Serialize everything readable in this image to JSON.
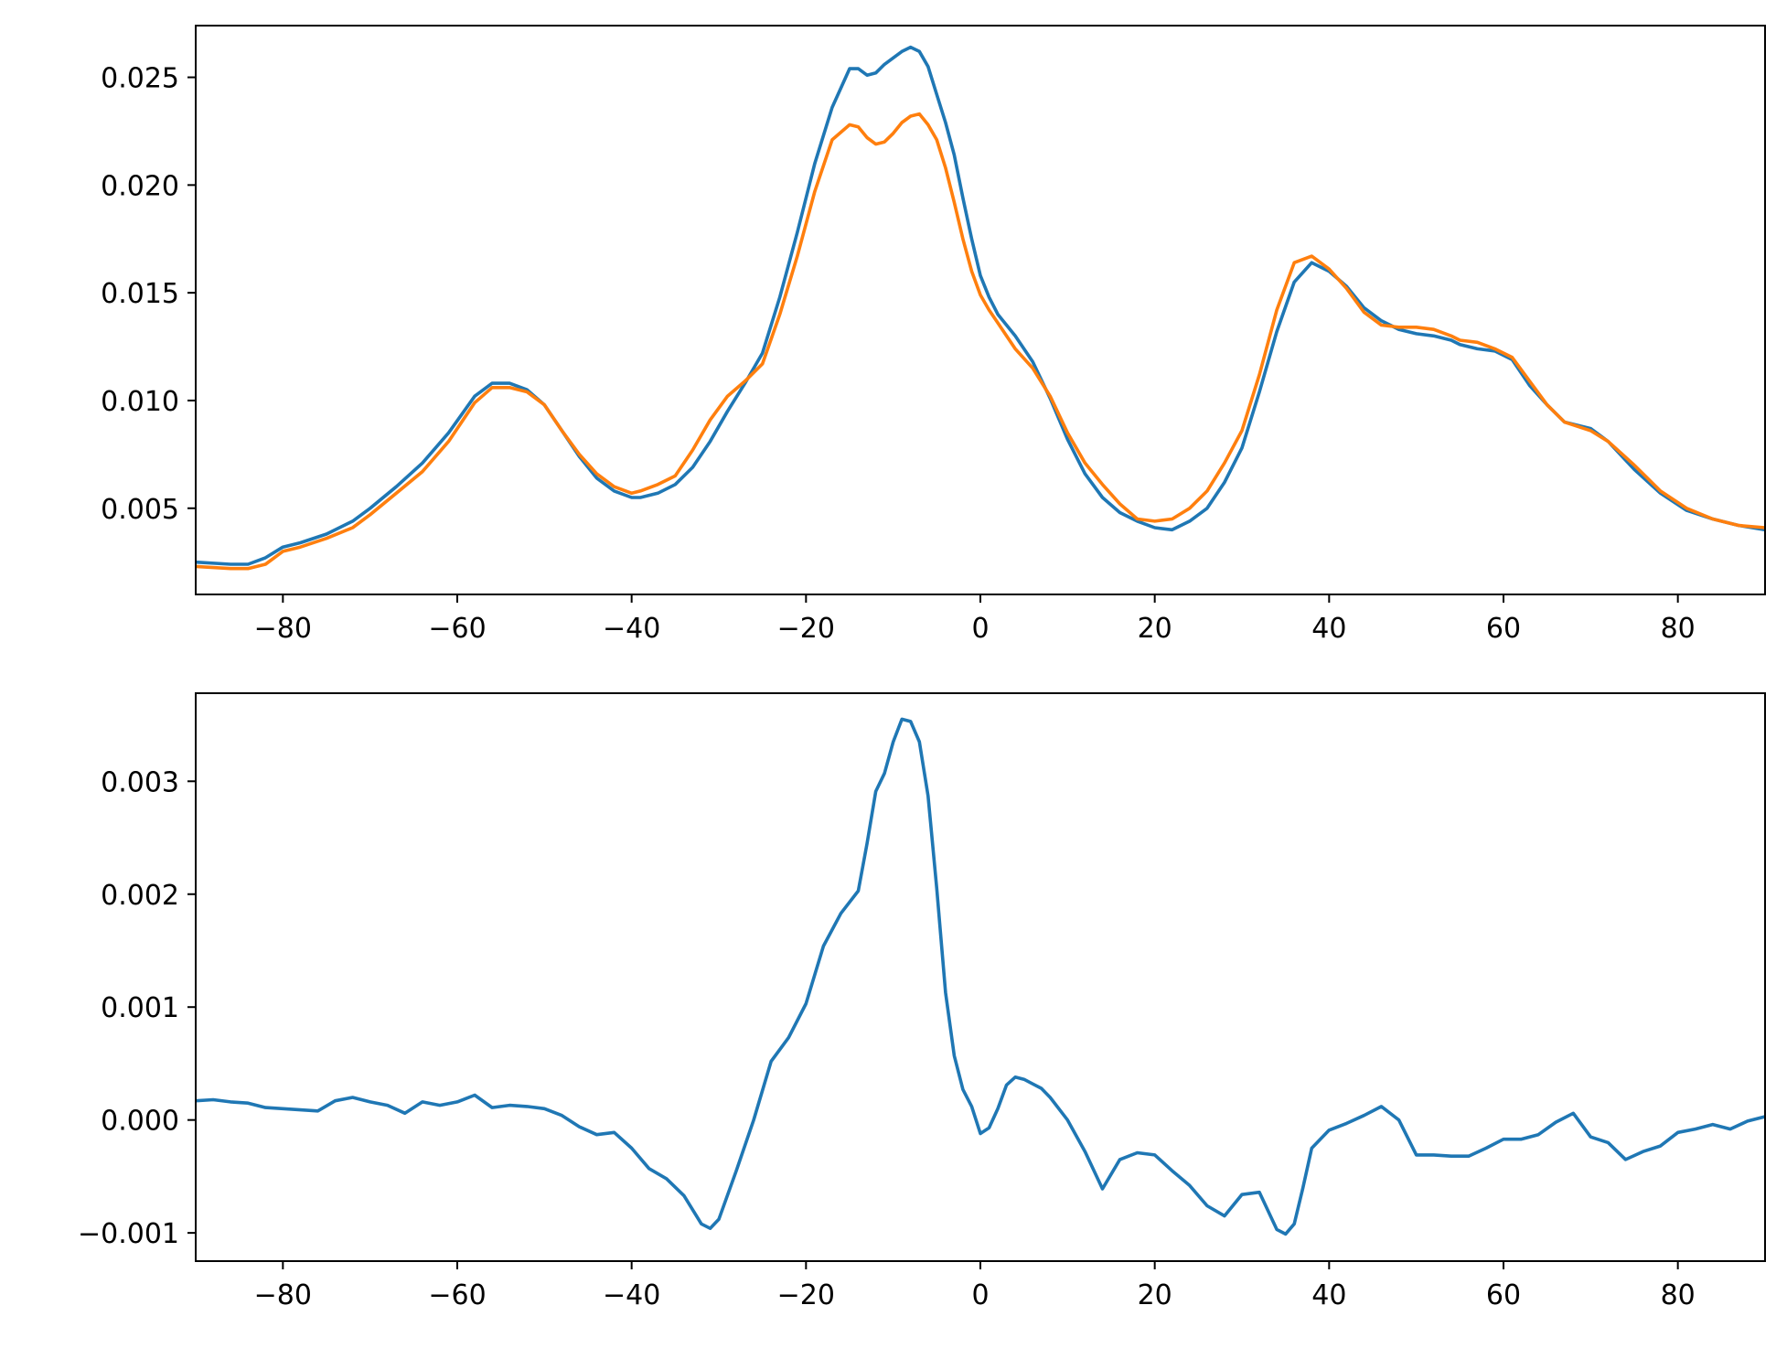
{
  "chart_data": [
    {
      "type": "line",
      "title": "",
      "xlabel": "",
      "ylabel": "",
      "xlim": [
        -90,
        90
      ],
      "ylim": [
        0.001,
        0.0274
      ],
      "grid": false,
      "x_ticks": [
        -80,
        -60,
        -40,
        -20,
        0,
        20,
        40,
        60,
        80
      ],
      "x_tick_labels": [
        "−80",
        "−60",
        "−40",
        "−20",
        "0",
        "20",
        "40",
        "60",
        "80"
      ],
      "y_ticks": [
        0.005,
        0.01,
        0.015,
        0.02,
        0.025
      ],
      "y_tick_labels": [
        "0.005",
        "0.010",
        "0.015",
        "0.020",
        "0.025"
      ],
      "series": [
        {
          "color": "#1f77b4",
          "x": [
            -90,
            -86,
            -84,
            -82,
            -80,
            -78,
            -75,
            -72,
            -70,
            -67,
            -64,
            -61,
            -58,
            -56,
            -54,
            -52,
            -50,
            -48,
            -46,
            -44,
            -42,
            -40,
            -39,
            -37,
            -35,
            -33,
            -31,
            -29,
            -27,
            -25,
            -23,
            -21,
            -19,
            -17,
            -15,
            -14,
            -13,
            -12,
            -11,
            -10,
            -9,
            -8,
            -7,
            -6,
            -5,
            -4,
            -3,
            -2,
            -1,
            0,
            1,
            2,
            4,
            6,
            8,
            10,
            12,
            14,
            16,
            18,
            20,
            22,
            24,
            26,
            28,
            30,
            32,
            34,
            36,
            38,
            40,
            42,
            44,
            46,
            48,
            50,
            52,
            54,
            55,
            57,
            59,
            61,
            63,
            65,
            67,
            70,
            72,
            75,
            78,
            81,
            84,
            87,
            90
          ],
          "y": [
            0.0025,
            0.0024,
            0.0024,
            0.0027,
            0.0032,
            0.0034,
            0.0038,
            0.0044,
            0.005,
            0.006,
            0.0071,
            0.0085,
            0.0102,
            0.0108,
            0.0108,
            0.0105,
            0.0098,
            0.0086,
            0.0074,
            0.0064,
            0.0058,
            0.0055,
            0.0055,
            0.0057,
            0.0061,
            0.0069,
            0.0081,
            0.0095,
            0.0108,
            0.0122,
            0.0148,
            0.0178,
            0.021,
            0.0236,
            0.0254,
            0.0254,
            0.0251,
            0.0252,
            0.0256,
            0.0259,
            0.0262,
            0.0264,
            0.0262,
            0.0255,
            0.0242,
            0.0229,
            0.0214,
            0.0194,
            0.0175,
            0.0158,
            0.0148,
            0.014,
            0.013,
            0.0118,
            0.0101,
            0.0082,
            0.0066,
            0.0055,
            0.0048,
            0.0044,
            0.0041,
            0.004,
            0.0044,
            0.005,
            0.0062,
            0.0078,
            0.0104,
            0.0132,
            0.0155,
            0.0164,
            0.016,
            0.0153,
            0.0143,
            0.0137,
            0.0133,
            0.0131,
            0.013,
            0.0128,
            0.0126,
            0.0124,
            0.0123,
            0.0119,
            0.0107,
            0.0098,
            0.009,
            0.0087,
            0.0081,
            0.0068,
            0.0057,
            0.0049,
            0.0045,
            0.0042,
            0.004
          ]
        },
        {
          "color": "#ff7f0e",
          "x": [
            -90,
            -86,
            -84,
            -82,
            -80,
            -78,
            -75,
            -72,
            -70,
            -67,
            -64,
            -61,
            -58,
            -56,
            -54,
            -52,
            -50,
            -48,
            -46,
            -44,
            -42,
            -40,
            -39,
            -37,
            -35,
            -33,
            -31,
            -29,
            -27,
            -25,
            -23,
            -21,
            -19,
            -17,
            -15,
            -14,
            -13,
            -12,
            -11,
            -10,
            -9,
            -8,
            -7,
            -6,
            -5,
            -4,
            -3,
            -2,
            -1,
            0,
            1,
            2,
            4,
            6,
            8,
            10,
            12,
            14,
            16,
            18,
            20,
            22,
            24,
            26,
            28,
            30,
            32,
            34,
            36,
            38,
            40,
            42,
            44,
            46,
            48,
            50,
            52,
            54,
            55,
            57,
            59,
            61,
            63,
            65,
            67,
            70,
            72,
            75,
            78,
            81,
            84,
            87,
            90
          ],
          "y": [
            0.0023,
            0.0022,
            0.0022,
            0.0024,
            0.003,
            0.0032,
            0.0036,
            0.0041,
            0.0047,
            0.0057,
            0.0067,
            0.0081,
            0.0099,
            0.0106,
            0.0106,
            0.0104,
            0.0098,
            0.0086,
            0.0075,
            0.0066,
            0.006,
            0.0057,
            0.0058,
            0.0061,
            0.0065,
            0.0077,
            0.0091,
            0.0102,
            0.0109,
            0.0117,
            0.014,
            0.0167,
            0.0197,
            0.0221,
            0.0228,
            0.0227,
            0.0222,
            0.0219,
            0.022,
            0.0224,
            0.0229,
            0.0232,
            0.0233,
            0.0228,
            0.0221,
            0.0208,
            0.0192,
            0.0175,
            0.016,
            0.0149,
            0.0142,
            0.0136,
            0.0124,
            0.0115,
            0.0102,
            0.0085,
            0.0071,
            0.0061,
            0.0052,
            0.0045,
            0.0044,
            0.0045,
            0.005,
            0.0058,
            0.0071,
            0.0086,
            0.0112,
            0.0142,
            0.0164,
            0.0167,
            0.0161,
            0.0152,
            0.0141,
            0.0135,
            0.0134,
            0.0134,
            0.0133,
            0.013,
            0.0128,
            0.0127,
            0.0124,
            0.012,
            0.0109,
            0.0098,
            0.009,
            0.0086,
            0.0081,
            0.007,
            0.0058,
            0.005,
            0.0045,
            0.0042,
            0.0041
          ]
        }
      ]
    },
    {
      "type": "line",
      "title": "",
      "xlabel": "",
      "ylabel": "",
      "xlim": [
        -90,
        90
      ],
      "ylim": [
        -0.00125,
        0.00378
      ],
      "grid": false,
      "x_ticks": [
        -80,
        -60,
        -40,
        -20,
        0,
        20,
        40,
        60,
        80
      ],
      "x_tick_labels": [
        "−80",
        "−60",
        "−40",
        "−20",
        "0",
        "20",
        "40",
        "60",
        "80"
      ],
      "y_ticks": [
        -0.001,
        0.0,
        0.001,
        0.002,
        0.003
      ],
      "y_tick_labels": [
        "−0.001",
        "0.000",
        "0.001",
        "0.002",
        "0.003"
      ],
      "series": [
        {
          "color": "#1f77b4",
          "x": [
            -90,
            -88,
            -86,
            -84,
            -82,
            -80,
            -78,
            -76,
            -74,
            -72,
            -70,
            -68,
            -66,
            -64,
            -62,
            -60,
            -58,
            -56,
            -54,
            -52,
            -50,
            -48,
            -46,
            -44,
            -42,
            -40,
            -38,
            -36,
            -34,
            -32,
            -31,
            -30,
            -28,
            -26,
            -24,
            -22,
            -20,
            -18,
            -16,
            -14,
            -13,
            -12,
            -11,
            -10,
            -9,
            -8,
            -7,
            -6,
            -5,
            -4,
            -3,
            -2,
            -1,
            0,
            1,
            2,
            3,
            4,
            5,
            6,
            7,
            8,
            10,
            12,
            14,
            16,
            18,
            20,
            22,
            24,
            26,
            28,
            30,
            32,
            34,
            35,
            36,
            37,
            38,
            40,
            42,
            44,
            46,
            48,
            50,
            52,
            54,
            56,
            58,
            60,
            62,
            64,
            66,
            68,
            70,
            72,
            74,
            76,
            78,
            80,
            82,
            84,
            86,
            88,
            90
          ],
          "y": [
            0.00017,
            0.00018,
            0.00016,
            0.00015,
            0.00011,
            0.0001,
            9e-05,
            8e-05,
            0.00017,
            0.0002,
            0.00016,
            0.00013,
            6e-05,
            0.00016,
            0.00013,
            0.00016,
            0.00022,
            0.00011,
            0.00013,
            0.00012,
            0.0001,
            4e-05,
            -6e-05,
            -0.00013,
            -0.00011,
            -0.00025,
            -0.00043,
            -0.00052,
            -0.00067,
            -0.00092,
            -0.00096,
            -0.00088,
            -0.00045,
            0.0,
            0.00052,
            0.00073,
            0.00103,
            0.00154,
            0.00183,
            0.00203,
            0.00245,
            0.00291,
            0.00307,
            0.00335,
            0.00355,
            0.00353,
            0.00335,
            0.00287,
            0.00205,
            0.00113,
            0.00057,
            0.00027,
            0.00012,
            -0.00012,
            -7e-05,
            0.0001,
            0.00031,
            0.00038,
            0.00036,
            0.00032,
            0.00028,
            0.0002,
            0.0,
            -0.00028,
            -0.00061,
            -0.00035,
            -0.00029,
            -0.00031,
            -0.00045,
            -0.00058,
            -0.00076,
            -0.00085,
            -0.00066,
            -0.00064,
            -0.00097,
            -0.00101,
            -0.00092,
            -0.0006,
            -0.00025,
            -9e-05,
            -3e-05,
            4e-05,
            0.00012,
            0.0,
            -0.00031,
            -0.00031,
            -0.00032,
            -0.00032,
            -0.00025,
            -0.00017,
            -0.00017,
            -0.00013,
            -2e-05,
            6e-05,
            -0.00015,
            -0.0002,
            -0.00035,
            -0.00028,
            -0.00023,
            -0.00011,
            -8e-05,
            -4e-05,
            -8e-05,
            -1e-05,
            3e-05
          ]
        }
      ]
    }
  ]
}
